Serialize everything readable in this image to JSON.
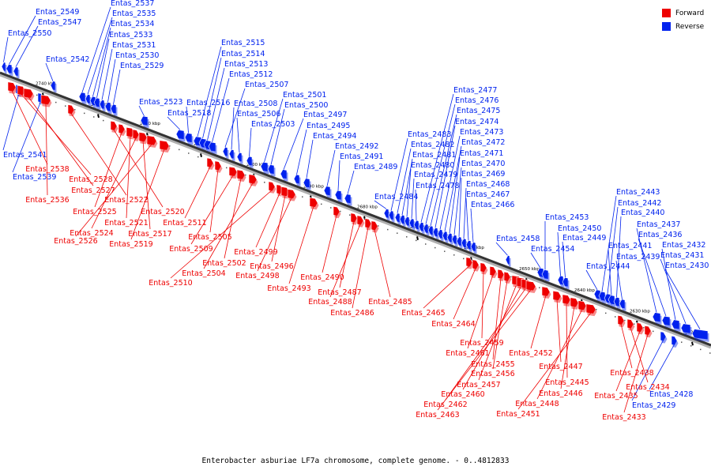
{
  "legend": {
    "forward": {
      "label": "Forward",
      "color": "#ee0000"
    },
    "reverse": {
      "label": "Reverse",
      "color": "#0022ee"
    }
  },
  "caption": "Enterobacter asburiae LF7a chromosome, complete genome. - 0..4812833",
  "axis": {
    "tick_unit": "kbp",
    "ticks": [
      "2740 kbp",
      "2730 kbp",
      "2720 kbp",
      "2710 kbp",
      "2700 kbp",
      "2690 kbp",
      "2680 kbp",
      "2670 kbp",
      "2660 kbp",
      "2650 kbp",
      "2640 kbp",
      "2630 kbp",
      "2620 kbp"
    ]
  },
  "genes_reverse": [
    "Entas_2549",
    "Entas_2547",
    "Entas_2550",
    "Entas_2542",
    "Entas_2537",
    "Entas_2535",
    "Entas_2534",
    "Entas_2533",
    "Entas_2531",
    "Entas_2530",
    "Entas_2529",
    "Entas_2523",
    "Entas_2518",
    "Entas_2516",
    "Entas_2515",
    "Entas_2514",
    "Entas_2513",
    "Entas_2512",
    "Entas_2507",
    "Entas_2508",
    "Entas_2506",
    "Entas_2503",
    "Entas_2501",
    "Entas_2500",
    "Entas_2497",
    "Entas_2495",
    "Entas_2494",
    "Entas_2492",
    "Entas_2491",
    "Entas_2489",
    "Entas_2484",
    "Entas_2483",
    "Entas_2482",
    "Entas_2481",
    "Entas_2480",
    "Entas_2479",
    "Entas_2478",
    "Entas_2477",
    "Entas_2476",
    "Entas_2475",
    "Entas_2474",
    "Entas_2473",
    "Entas_2472",
    "Entas_2471",
    "Entas_2470",
    "Entas_2469",
    "Entas_2468",
    "Entas_2467",
    "Entas_2466",
    "Entas_2458",
    "Entas_2454",
    "Entas_2453",
    "Entas_2450",
    "Entas_2449",
    "Entas_2444",
    "Entas_2443",
    "Entas_2442",
    "Entas_2441",
    "Entas_2440",
    "Entas_2439",
    "Entas_2437",
    "Entas_2436",
    "Entas_2432",
    "Entas_2431",
    "Entas_2430",
    "Entas_2541",
    "Entas_2539",
    "Entas_2429",
    "Entas_2428"
  ],
  "genes_forward": [
    "Entas_2538",
    "Entas_2528",
    "Entas_2527",
    "Entas_2536",
    "Entas_2522",
    "Entas_2520",
    "Entas_2525",
    "Entas_2521",
    "Entas_2524",
    "Entas_2517",
    "Entas_2526",
    "Entas_2519",
    "Entas_2511",
    "Entas_2505",
    "Entas_2509",
    "Entas_2502",
    "Entas_2504",
    "Entas_2510",
    "Entas_2499",
    "Entas_2496",
    "Entas_2498",
    "Entas_2493",
    "Entas_2490",
    "Entas_2487",
    "Entas_2488",
    "Entas_2486",
    "Entas_2485",
    "Entas_2465",
    "Entas_2464",
    "Entas_2459",
    "Entas_2461",
    "Entas_2455",
    "Entas_2456",
    "Entas_2457",
    "Entas_2460",
    "Entas_2462",
    "Entas_2463",
    "Entas_2452",
    "Entas_2447",
    "Entas_2445",
    "Entas_2446",
    "Entas_2448",
    "Entas_2451",
    "Entas_2438",
    "Entas_2434",
    "Entas_2435",
    "Entas_2433"
  ]
}
